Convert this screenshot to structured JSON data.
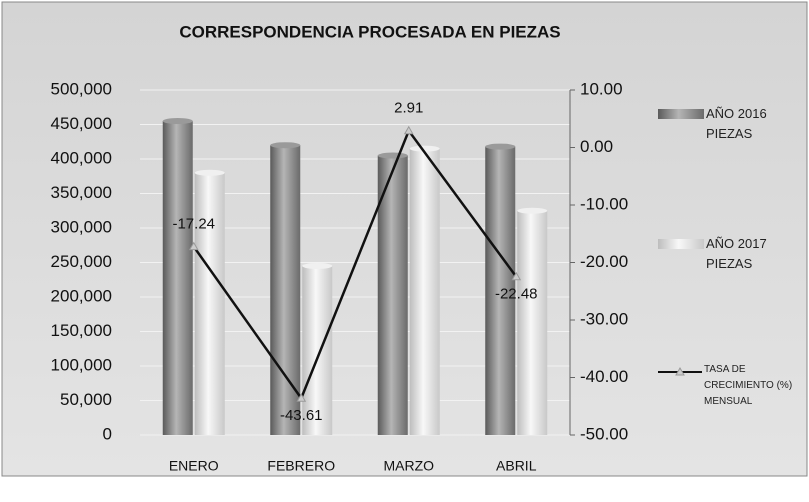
{
  "chart_data": {
    "type": "bar",
    "title": "CORRESPONDENCIA PROCESADA EN PIEZAS",
    "categories": [
      "ENERO",
      "FEBRERO",
      "MARZO",
      "ABRIL"
    ],
    "series": [
      {
        "name": "AÑO 2016 PIEZAS",
        "color": "#8c8c8c",
        "values": [
          455000,
          420000,
          405000,
          418000
        ]
      },
      {
        "name": "AÑO 2017 PIEZAS",
        "color": "#e6e6e6",
        "values": [
          380000,
          245000,
          415000,
          325000
        ]
      },
      {
        "name": "TASA DE CRECIMIENTO (%) MENSUAL",
        "type": "line",
        "axis": "y2",
        "color": "#111111",
        "values": [
          -17.24,
          -43.61,
          2.91,
          -22.48
        ]
      }
    ],
    "ylim": [
      0,
      500000
    ],
    "yticks": [
      0,
      {
        "value": 50000,
        "label": "50,000"
      },
      {
        "value": 100000,
        "label": "100,000"
      },
      {
        "value": 150000,
        "label": "150,000"
      },
      {
        "value": 200000,
        "label": "200,000"
      },
      {
        "value": 250000,
        "label": "250,000"
      },
      {
        "value": 300000,
        "label": "300,000"
      },
      {
        "value": 350000,
        "label": "350,000"
      },
      {
        "value": 400000,
        "label": "400,000"
      },
      {
        "value": 450000,
        "label": "450,000"
      },
      {
        "value": 500000,
        "label": "500,000"
      }
    ],
    "y2lim": [
      -50,
      10
    ],
    "y2ticks": [
      {
        "value": -50,
        "label": "-50.00"
      },
      {
        "value": -40,
        "label": "-40.00"
      },
      {
        "value": -30,
        "label": "-30.00"
      },
      {
        "value": -20,
        "label": "-20.00"
      },
      {
        "value": -10,
        "label": "-10.00"
      },
      {
        "value": 0,
        "label": "0.00"
      },
      {
        "value": 10,
        "label": "10.00"
      }
    ],
    "grid": true
  }
}
